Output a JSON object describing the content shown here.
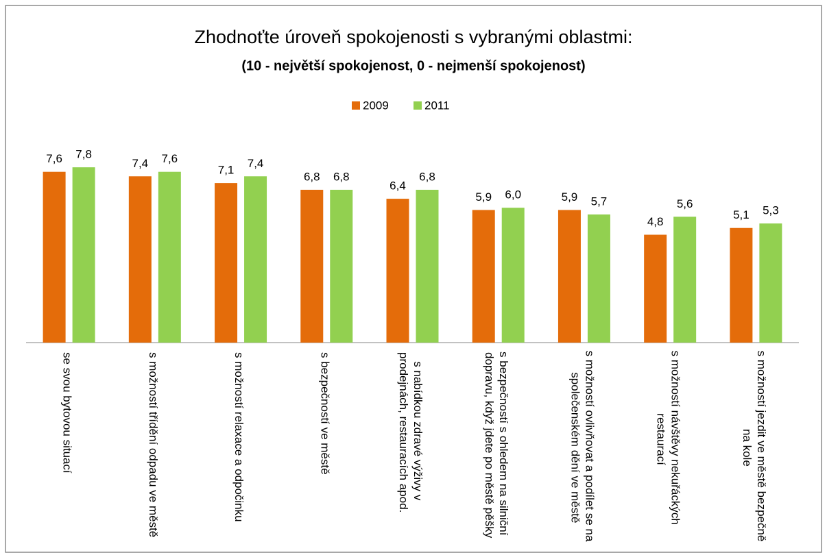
{
  "chart_data": {
    "type": "bar",
    "title": "Zhodnoťte úroveň spokojenosti s vybranými oblastmi:",
    "subtitle": "(10 -  největší spokojenost, 0 - nejmenší spokojenost)",
    "categories": [
      "se svou bytovou situací",
      "s možností třídění odpadu ve městě",
      "s možností relaxace a odpočinku",
      "s bezpečností ve městě",
      "s nabídkou zdravé výživy v prodejnách, restauracích apod.",
      "s bezpečností s ohledem na silniční dopravu, když jdete po městě pěšky",
      "s možností ovlivňovat a podílet se na společenském dění ve městě",
      "s možností návštěvy nekuřáckých restaurací",
      "s možností jezdit ve městě bezpečně na kole"
    ],
    "series": [
      {
        "name": "2009",
        "color": "#e46c0a",
        "values": [
          7.6,
          7.4,
          7.1,
          6.8,
          6.4,
          5.9,
          5.9,
          4.8,
          5.1
        ],
        "value_labels": [
          "7,6",
          "7,4",
          "7,1",
          "6,8",
          "6,4",
          "5,9",
          "5,9",
          "4,8",
          "5,1"
        ]
      },
      {
        "name": "2011",
        "color": "#92d050",
        "values": [
          7.8,
          7.6,
          7.4,
          6.8,
          6.8,
          6.0,
          5.7,
          5.6,
          5.3
        ],
        "value_labels": [
          "7,8",
          "7,6",
          "7,4",
          "6,8",
          "6,8",
          "6,0",
          "5,7",
          "5,6",
          "5,3"
        ]
      }
    ],
    "legend": "top"
  }
}
